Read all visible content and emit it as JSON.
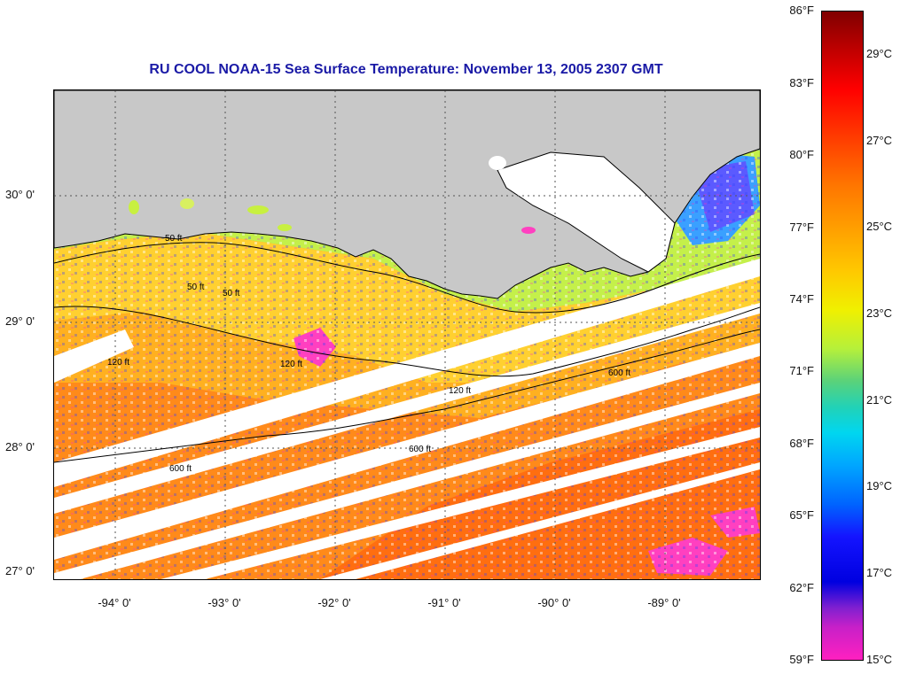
{
  "title": "RU COOL  NOAA-15  Sea Surface Temperature:  November 13, 2005 2307 GMT",
  "latitude_labels": [
    "30° 0'",
    "29° 0'",
    "28° 0'",
    "27° 0'"
  ],
  "longitude_labels": [
    "-94° 0'",
    "-93° 0'",
    "-92° 0'",
    "-91° 0'",
    "-90° 0'",
    "-89° 0'"
  ],
  "contour_labels": [
    "50 ft",
    "120 ft",
    "600 ft"
  ],
  "colorbar": {
    "fahrenheit_labels": [
      "86°F",
      "83°F",
      "80°F",
      "77°F",
      "74°F",
      "71°F",
      "68°F",
      "65°F",
      "62°F",
      "59°F"
    ],
    "celsius_labels": [
      "29°C",
      "27°C",
      "25°C",
      "23°C",
      "21°C",
      "19°C",
      "17°C",
      "15°C"
    ]
  },
  "colors": {
    "title": "#1a1aa6",
    "land": "#c8c8c8",
    "cloud_gaps": "#ffffff",
    "contour": "#000000"
  }
}
